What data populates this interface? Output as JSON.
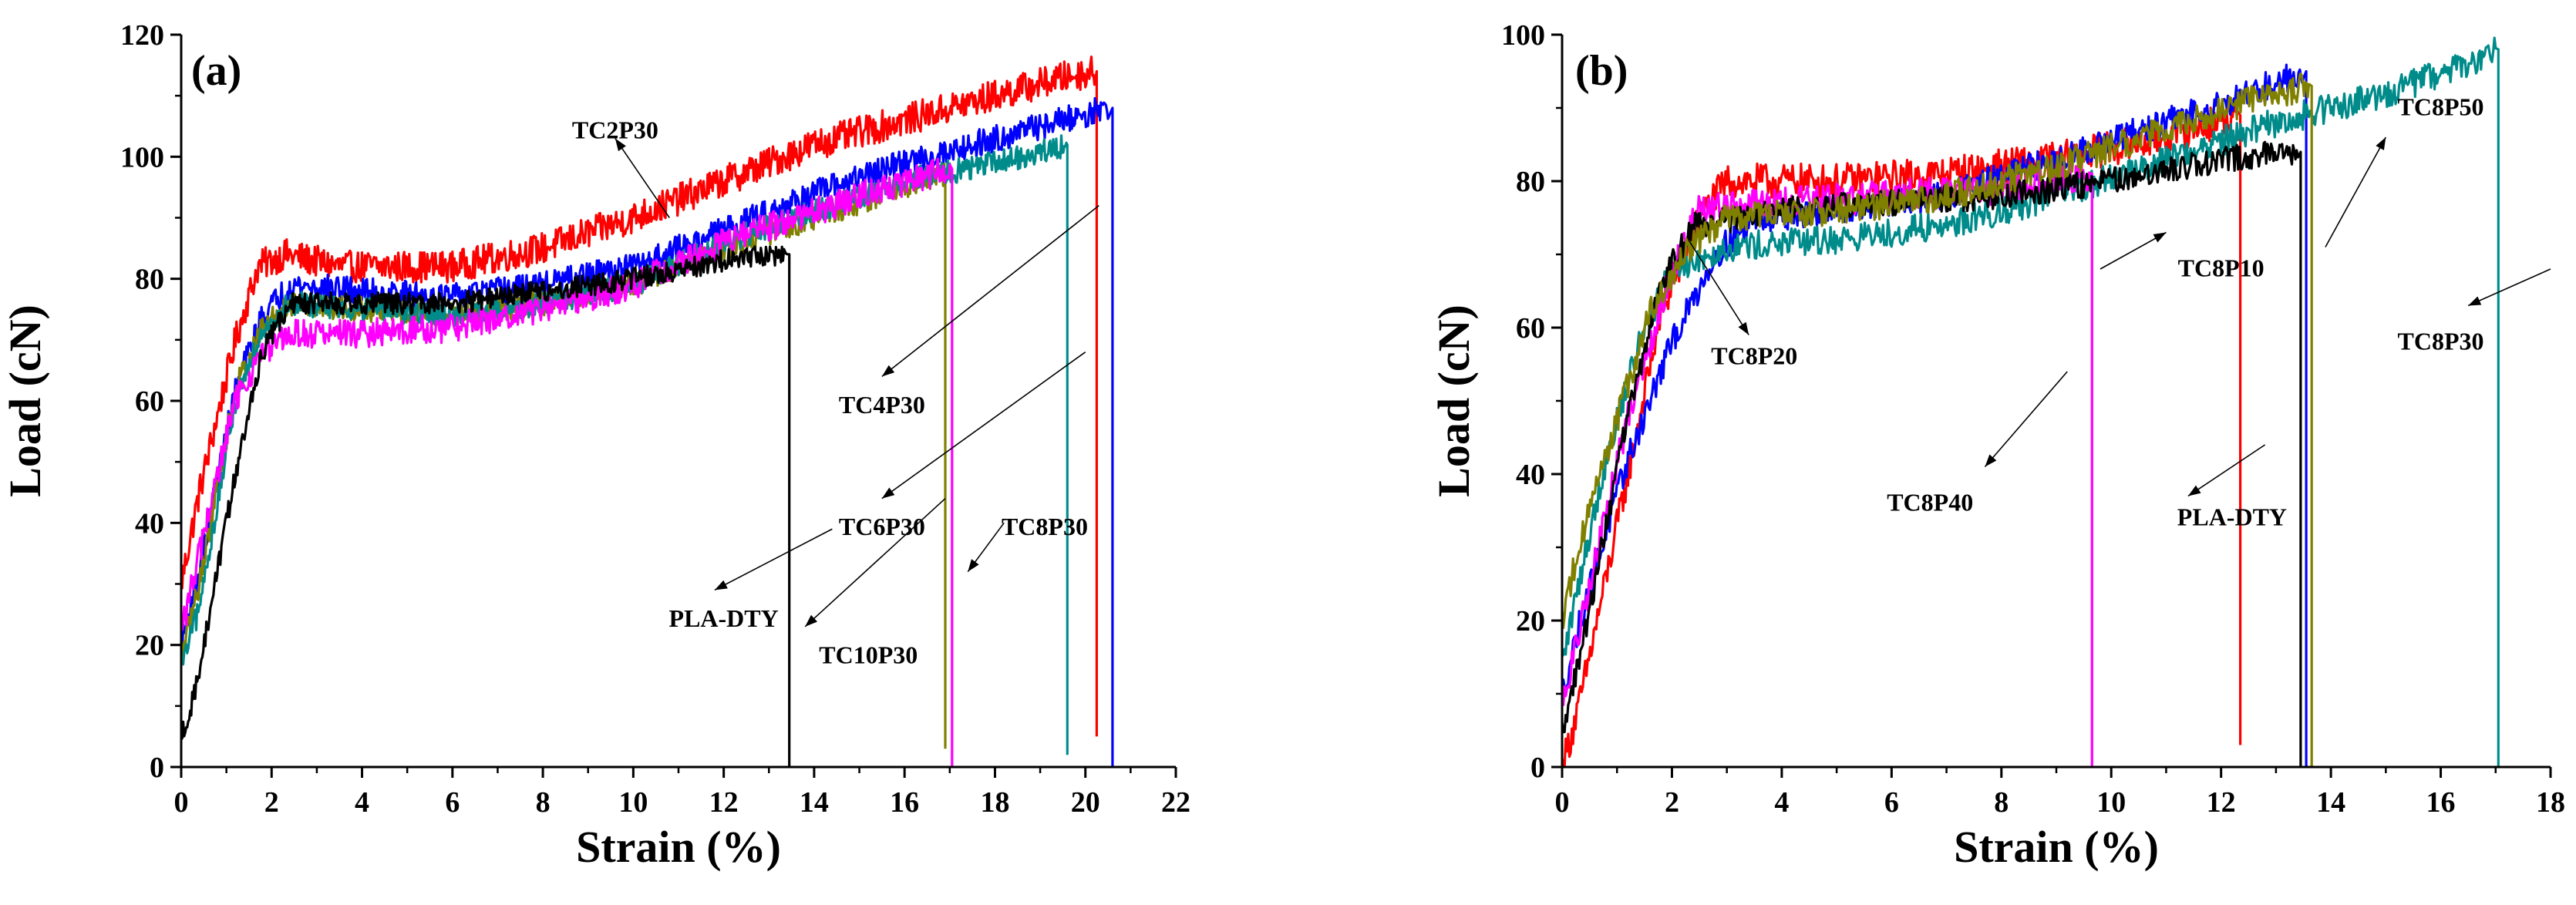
{
  "chart_data": [
    {
      "type": "line",
      "panel_label": "(a)",
      "xlabel": "Strain (%)",
      "ylabel": "Load (cN)",
      "xlim": [
        0,
        22
      ],
      "ylim": [
        0,
        120
      ],
      "xticks": [
        0,
        2,
        4,
        6,
        8,
        10,
        12,
        14,
        16,
        18,
        20,
        22
      ],
      "yticks": [
        0,
        20,
        40,
        60,
        80,
        100,
        120
      ],
      "series": [
        {
          "name": "TC2P30",
          "color": "#ff0000",
          "noise": 2.6,
          "points": [
            [
              0,
              30
            ],
            [
              0.4,
              45
            ],
            [
              1.2,
              70
            ],
            [
              1.7,
              82
            ],
            [
              2.3,
              84
            ],
            [
              3.5,
              82
            ],
            [
              6,
              82
            ],
            [
              8,
              85
            ],
            [
              10,
              90
            ],
            [
              12,
              96
            ],
            [
              14,
              102
            ],
            [
              16,
              106
            ],
            [
              18,
              110
            ],
            [
              19.5,
              113
            ],
            [
              20.2,
              114
            ]
          ],
          "break_strain": 20.25,
          "break_to": 5
        },
        {
          "name": "TC4P30",
          "color": "#0000ff",
          "noise": 2.2,
          "points": [
            [
              0,
              20
            ],
            [
              0.4,
              32
            ],
            [
              1.2,
              62
            ],
            [
              1.8,
              74
            ],
            [
              2.4,
              79
            ],
            [
              4,
              78
            ],
            [
              6,
              77
            ],
            [
              8,
              79
            ],
            [
              10,
              82
            ],
            [
              12,
              88
            ],
            [
              14,
              94
            ],
            [
              16,
              99
            ],
            [
              18,
              103
            ],
            [
              19.5,
              106
            ],
            [
              20.5,
              108
            ]
          ],
          "break_strain": 20.6,
          "break_to": 0
        },
        {
          "name": "TC6P30",
          "color": "#808000",
          "noise": 2.0,
          "points": [
            [
              0,
              18
            ],
            [
              0.4,
              30
            ],
            [
              1.2,
              62
            ],
            [
              1.8,
              72
            ],
            [
              2.4,
              76
            ],
            [
              4,
              75
            ],
            [
              6,
              74
            ],
            [
              8,
              76
            ],
            [
              10,
              79
            ],
            [
              12,
              85
            ],
            [
              14,
              90
            ],
            [
              16,
              95
            ],
            [
              16.9,
              97
            ]
          ],
          "break_strain": 16.9,
          "break_to": 3
        },
        {
          "name": "TC8P30",
          "color": "#008b8b",
          "noise": 2.0,
          "points": [
            [
              0,
              16
            ],
            [
              0.4,
              26
            ],
            [
              1.2,
              60
            ],
            [
              1.8,
              72
            ],
            [
              2.4,
              76
            ],
            [
              4,
              75
            ],
            [
              6,
              74
            ],
            [
              8,
              76
            ],
            [
              10,
              79
            ],
            [
              12,
              86
            ],
            [
              14,
              91
            ],
            [
              16,
              96
            ],
            [
              18,
              99
            ],
            [
              19.6,
              102
            ]
          ],
          "break_strain": 19.6,
          "break_to": 2
        },
        {
          "name": "TC10P30",
          "color": "#ff00ff",
          "noise": 2.4,
          "points": [
            [
              0,
              22
            ],
            [
              0.4,
              35
            ],
            [
              1.2,
              60
            ],
            [
              1.8,
              68
            ],
            [
              2.5,
              71
            ],
            [
              4,
              71
            ],
            [
              6,
              72
            ],
            [
              8,
              75
            ],
            [
              10,
              79
            ],
            [
              12,
              86
            ],
            [
              14,
              91
            ],
            [
              16,
              96
            ],
            [
              17,
              98
            ]
          ],
          "break_strain": 17.05,
          "break_to": 0
        },
        {
          "name": "PLA-DTY",
          "color": "#000000",
          "noise": 1.8,
          "points": [
            [
              0,
              5
            ],
            [
              0.3,
              12
            ],
            [
              1.2,
              48
            ],
            [
              1.8,
              68
            ],
            [
              2.4,
              76
            ],
            [
              4,
              76
            ],
            [
              6,
              76
            ],
            [
              8,
              78
            ],
            [
              10,
              80
            ],
            [
              12,
              83
            ],
            [
              13.4,
              84
            ]
          ],
          "break_strain": 13.45,
          "break_to": 0
        }
      ],
      "annotations": [
        {
          "text": "TC2P30",
          "label_at": [
            9.6,
            103
          ],
          "arrow_to": [
            10.8,
            90
          ]
        },
        {
          "text": "TC4P30",
          "label_at": [
            15.5,
            58
          ],
          "arrow_from": [
            15.5,
            64
          ],
          "arrow_to": [
            20.3,
            92
          ]
        },
        {
          "text": "TC6P30",
          "label_at": [
            15.5,
            38
          ],
          "arrow_from": [
            15.5,
            44
          ],
          "arrow_to": [
            20.0,
            68
          ]
        },
        {
          "text": "PLA-DTY",
          "label_at": [
            12.0,
            23
          ],
          "arrow_from": [
            11.8,
            29
          ],
          "arrow_to": [
            14.4,
            39
          ]
        },
        {
          "text": "TC10P30",
          "label_at": [
            15.2,
            17
          ],
          "arrow_from": [
            13.8,
            23
          ],
          "arrow_to": [
            16.9,
            44
          ]
        },
        {
          "text": "TC8P30",
          "label_at": [
            19.1,
            38
          ],
          "arrow_from": [
            17.4,
            32
          ],
          "arrow_to": [
            18.2,
            40
          ]
        }
      ]
    },
    {
      "type": "line",
      "panel_label": "(b)",
      "xlabel": "Strain (%)",
      "ylabel": "Load (cN)",
      "xlim": [
        0,
        18
      ],
      "ylim": [
        0,
        100
      ],
      "xticks": [
        0,
        2,
        4,
        6,
        8,
        10,
        12,
        14,
        16,
        18
      ],
      "yticks": [
        0,
        20,
        40,
        60,
        80,
        100
      ],
      "series": [
        {
          "name": "TC8P10",
          "color": "#ff0000",
          "noise": 2.4,
          "points": [
            [
              0,
              0
            ],
            [
              0.3,
              8
            ],
            [
              1.2,
              40
            ],
            [
              1.8,
              62
            ],
            [
              2.5,
              75
            ],
            [
              3,
              80
            ],
            [
              5,
              80
            ],
            [
              7,
              81
            ],
            [
              9,
              83
            ],
            [
              11,
              86
            ],
            [
              12.3,
              89
            ]
          ],
          "break_strain": 12.35,
          "break_to": 3
        },
        {
          "name": "TC8P20",
          "color": "#0000ff",
          "noise": 2.0,
          "points": [
            [
              0,
              10
            ],
            [
              0.4,
              22
            ],
            [
              1.2,
              42
            ],
            [
              2.0,
              58
            ],
            [
              2.8,
              70
            ],
            [
              3.5,
              75
            ],
            [
              5,
              76
            ],
            [
              7,
              78
            ],
            [
              9,
              83
            ],
            [
              11,
              88
            ],
            [
              12.5,
              92
            ],
            [
              13.5,
              95
            ]
          ],
          "break_strain": 13.55,
          "break_to": 0
        },
        {
          "name": "TC8P30",
          "color": "#008b8b",
          "noise": 2.0,
          "points": [
            [
              0,
              14
            ],
            [
              0.3,
              25
            ],
            [
              0.8,
              42
            ],
            [
              1.4,
              58
            ],
            [
              2.0,
              68
            ],
            [
              3,
              71
            ],
            [
              5,
              72
            ],
            [
              7,
              74
            ],
            [
              9,
              78
            ],
            [
              11,
              83
            ],
            [
              13,
              88
            ],
            [
              15,
              92
            ],
            [
              16.5,
              96
            ],
            [
              17,
              98
            ]
          ],
          "break_strain": 17.05,
          "break_to": 0
        },
        {
          "name": "TC8P40",
          "color": "#ff00ff",
          "noise": 2.2,
          "points": [
            [
              0,
              8
            ],
            [
              0.3,
              18
            ],
            [
              1.2,
              48
            ],
            [
              2.0,
              68
            ],
            [
              2.5,
              76
            ],
            [
              4,
              77
            ],
            [
              6,
              78
            ],
            [
              8,
              79
            ],
            [
              9.6,
              81
            ]
          ],
          "break_strain": 9.65,
          "break_to": 0
        },
        {
          "name": "PLA-DTY",
          "color": "#000000",
          "noise": 1.8,
          "points": [
            [
              0,
              5
            ],
            [
              0.3,
              14
            ],
            [
              1.2,
              48
            ],
            [
              1.8,
              66
            ],
            [
              2.4,
              74
            ],
            [
              4,
              76
            ],
            [
              6,
              77
            ],
            [
              8,
              78
            ],
            [
              10,
              80
            ],
            [
              12,
              83
            ],
            [
              13.4,
              84
            ]
          ],
          "break_strain": 13.45,
          "break_to": 0
        },
        {
          "name": "TC8P50",
          "color": "#808000",
          "noise": 2.0,
          "points": [
            [
              0,
              20
            ],
            [
              0.3,
              30
            ],
            [
              0.9,
              45
            ],
            [
              1.6,
              62
            ],
            [
              2.2,
              70
            ],
            [
              3,
              75
            ],
            [
              5,
              76
            ],
            [
              7,
              78
            ],
            [
              9,
              82
            ],
            [
              11,
              87
            ],
            [
              12.5,
              91
            ],
            [
              13.6,
              93
            ]
          ],
          "break_strain": 13.65,
          "break_to": 0
        }
      ],
      "annotations": [
        {
          "text": "TC8P20",
          "label_at": [
            3.5,
            55
          ],
          "arrow_from": [
            3.4,
            59
          ],
          "arrow_to": [
            2.3,
            72
          ]
        },
        {
          "text": "TC8P10",
          "label_at": [
            12.0,
            67
          ],
          "arrow_from": [
            11.0,
            73
          ],
          "arrow_to": [
            9.8,
            68
          ]
        },
        {
          "text": "TC8P50",
          "label_at": [
            16.0,
            89
          ],
          "arrow_from": [
            15.0,
            86
          ],
          "arrow_to": [
            13.9,
            71
          ]
        },
        {
          "text": "TC8P40",
          "label_at": [
            6.7,
            35
          ],
          "arrow_from": [
            7.7,
            41
          ],
          "arrow_to": [
            9.2,
            54
          ]
        },
        {
          "text": "PLA-DTY",
          "label_at": [
            12.2,
            33
          ],
          "arrow_from": [
            11.4,
            37
          ],
          "arrow_to": [
            12.8,
            44
          ]
        },
        {
          "text": "TC8P30",
          "label_at": [
            16.0,
            57
          ],
          "arrow_from": [
            16.5,
            63
          ],
          "arrow_to": [
            18.0,
            68
          ]
        }
      ]
    }
  ]
}
